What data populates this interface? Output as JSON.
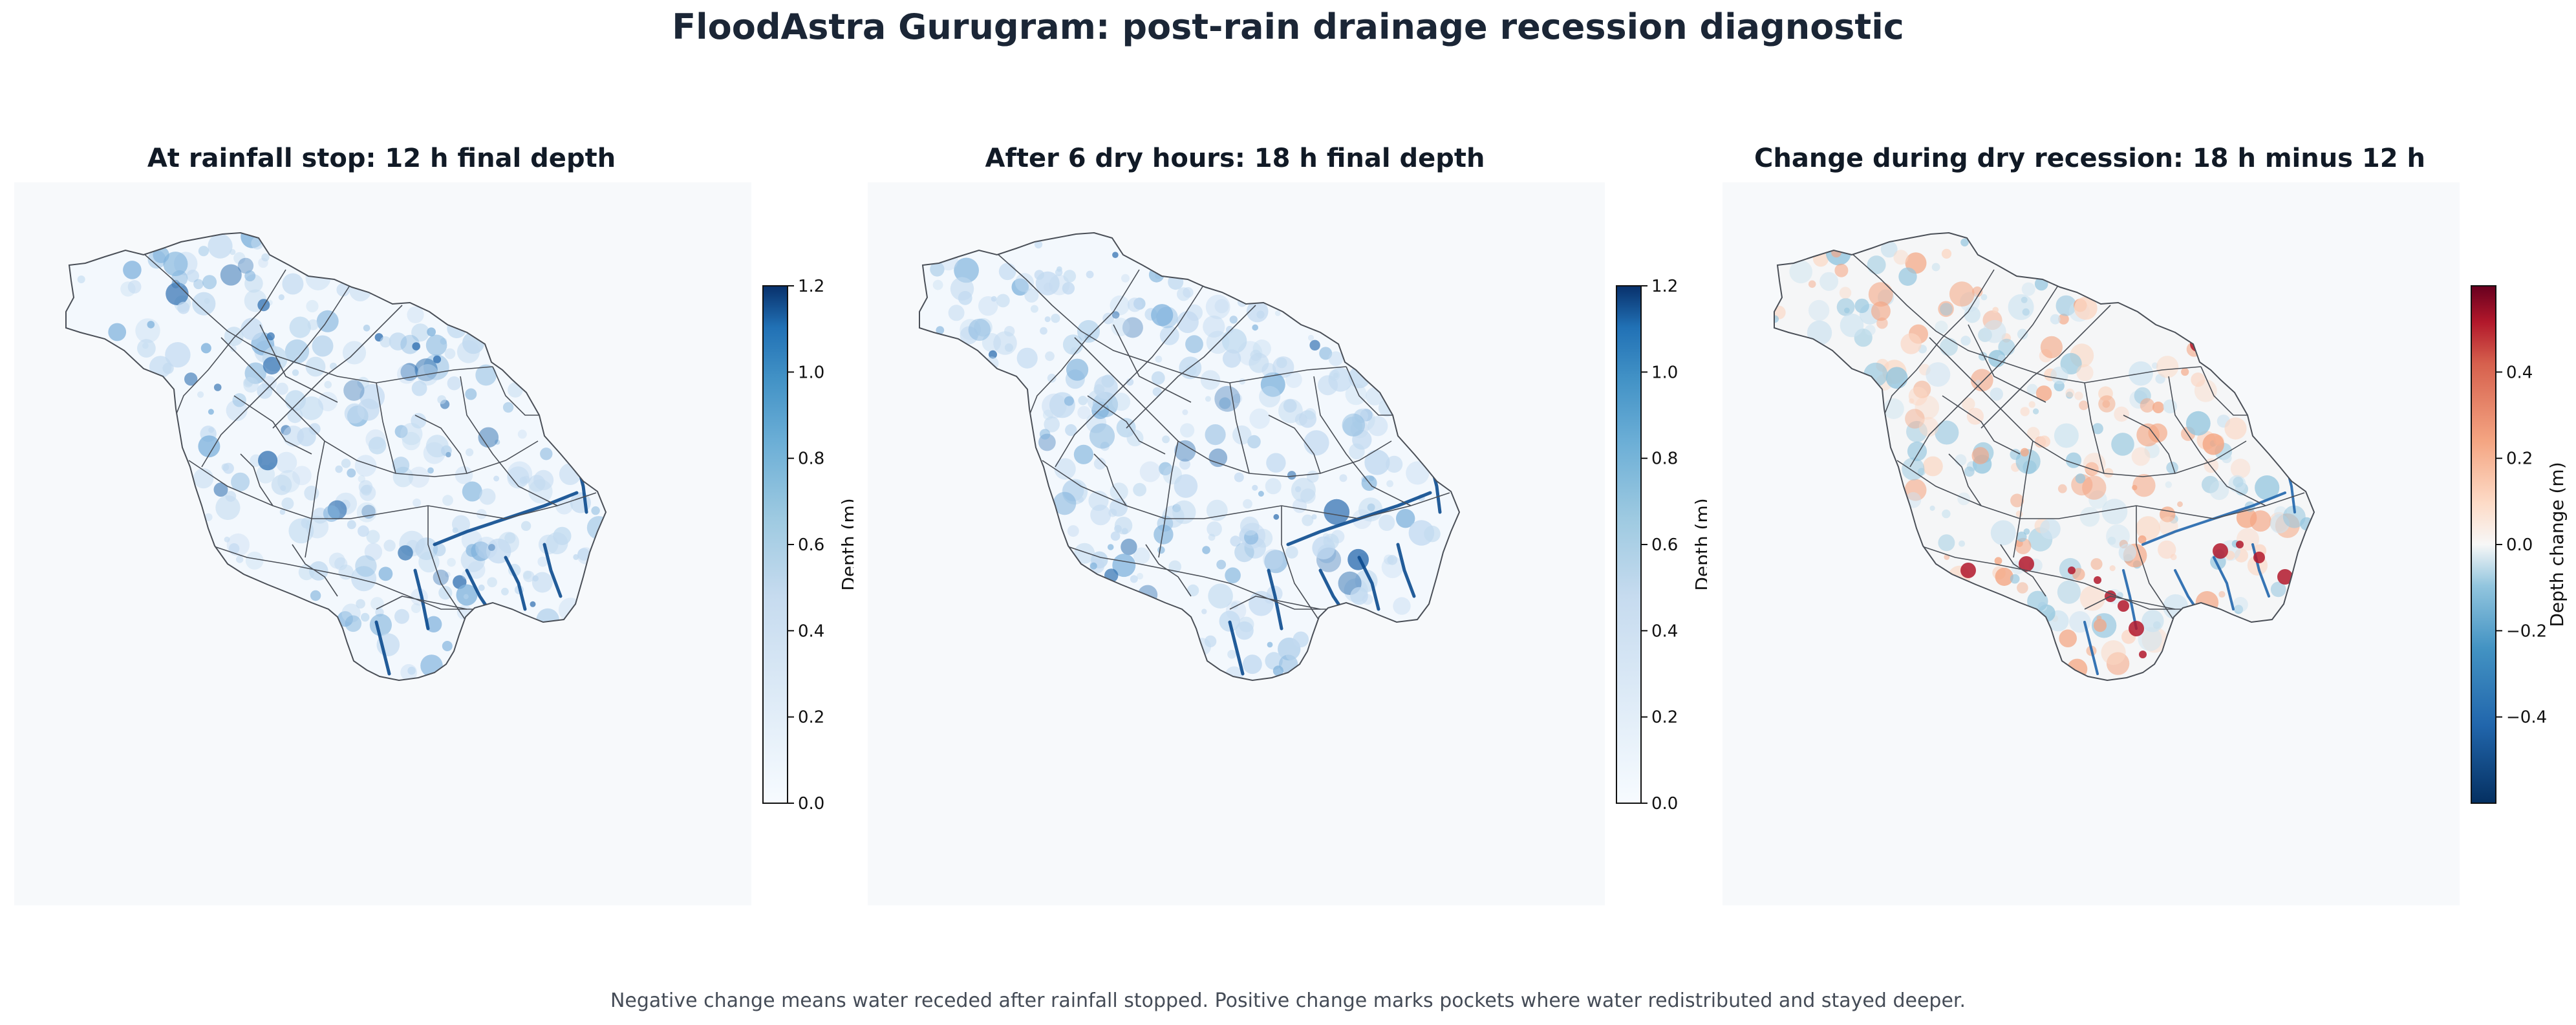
{
  "title": "FloodAstra Gurugram: post-rain drainage recession diagnostic",
  "footnote": "Negative change means water receded after rainfall stopped. Positive change marks pockets where water redistributed and stayed deeper.",
  "colors": {
    "map_background": "#f7f9fb",
    "boundary": "#4a4f57",
    "blues_light": "#f7fbff",
    "blues_dark": "#08306b",
    "red_dark": "#67001f",
    "blue_dark": "#053061",
    "neutral": "#f7f7f7"
  },
  "chart_data": [
    {
      "type": "heatmap",
      "title": "At rainfall stop: 12 h final depth",
      "colormap": "Blues",
      "colorbar": {
        "label": "Depth (m)",
        "range": [
          0.0,
          1.2
        ],
        "ticks": [
          0.0,
          0.2,
          0.4,
          0.6,
          0.8,
          1.0,
          1.2
        ],
        "tick_labels": [
          "0.0",
          "0.2",
          "0.4",
          "0.6",
          "0.8",
          "1.0",
          "1.2"
        ]
      }
    },
    {
      "type": "heatmap",
      "title": "After 6 dry hours: 18 h final depth",
      "colormap": "Blues",
      "colorbar": {
        "label": "Depth (m)",
        "range": [
          0.0,
          1.2
        ],
        "ticks": [
          0.0,
          0.2,
          0.4,
          0.6,
          0.8,
          1.0,
          1.2
        ],
        "tick_labels": [
          "0.0",
          "0.2",
          "0.4",
          "0.6",
          "0.8",
          "1.0",
          "1.2"
        ]
      }
    },
    {
      "type": "heatmap",
      "title": "Change during dry recession: 18 h minus 12 h",
      "colormap": "RdBu_r",
      "colorbar": {
        "label": "Depth change (m)",
        "range": [
          -0.6,
          0.6
        ],
        "ticks": [
          -0.4,
          -0.2,
          0.0,
          0.2,
          0.4
        ],
        "tick_labels": [
          "−0.4",
          "−0.2",
          "0.0",
          "0.2",
          "0.4"
        ]
      }
    }
  ]
}
